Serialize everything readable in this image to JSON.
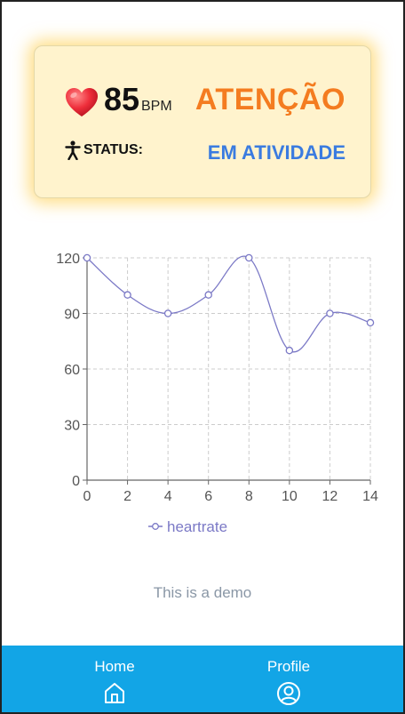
{
  "status_card": {
    "bpm_value": "85",
    "bpm_unit": "BPM",
    "alert_text": "ATENÇÃO",
    "status_label": "STATUS:",
    "status_value": "EM ATIVIDADE",
    "icons": {
      "heart": "heart-icon",
      "person": "person-icon"
    },
    "colors": {
      "alert": "#f47c20",
      "status_value": "#3a7be0",
      "card_bg": "#fff3cd"
    }
  },
  "chart_data": {
    "type": "line",
    "smooth": true,
    "x": [
      0,
      2,
      4,
      6,
      8,
      10,
      12,
      14
    ],
    "series": [
      {
        "name": "heartrate",
        "values": [
          120,
          100,
          90,
          100,
          120,
          70,
          90,
          85
        ],
        "color": "#7b79c6"
      }
    ],
    "xticks": [
      "0",
      "2",
      "4",
      "6",
      "8",
      "10",
      "12",
      "14"
    ],
    "yticks": [
      "0",
      "30",
      "60",
      "90",
      "120"
    ],
    "xlim": [
      0,
      14
    ],
    "ylim": [
      0,
      120
    ],
    "grid": true,
    "legend": "bottom-center"
  },
  "footer_text": "This is a demo",
  "nav": {
    "items": [
      {
        "label": "Home",
        "icon": "home-icon"
      },
      {
        "label": "Profile",
        "icon": "profile-icon"
      }
    ],
    "color": "#12a5e6"
  }
}
